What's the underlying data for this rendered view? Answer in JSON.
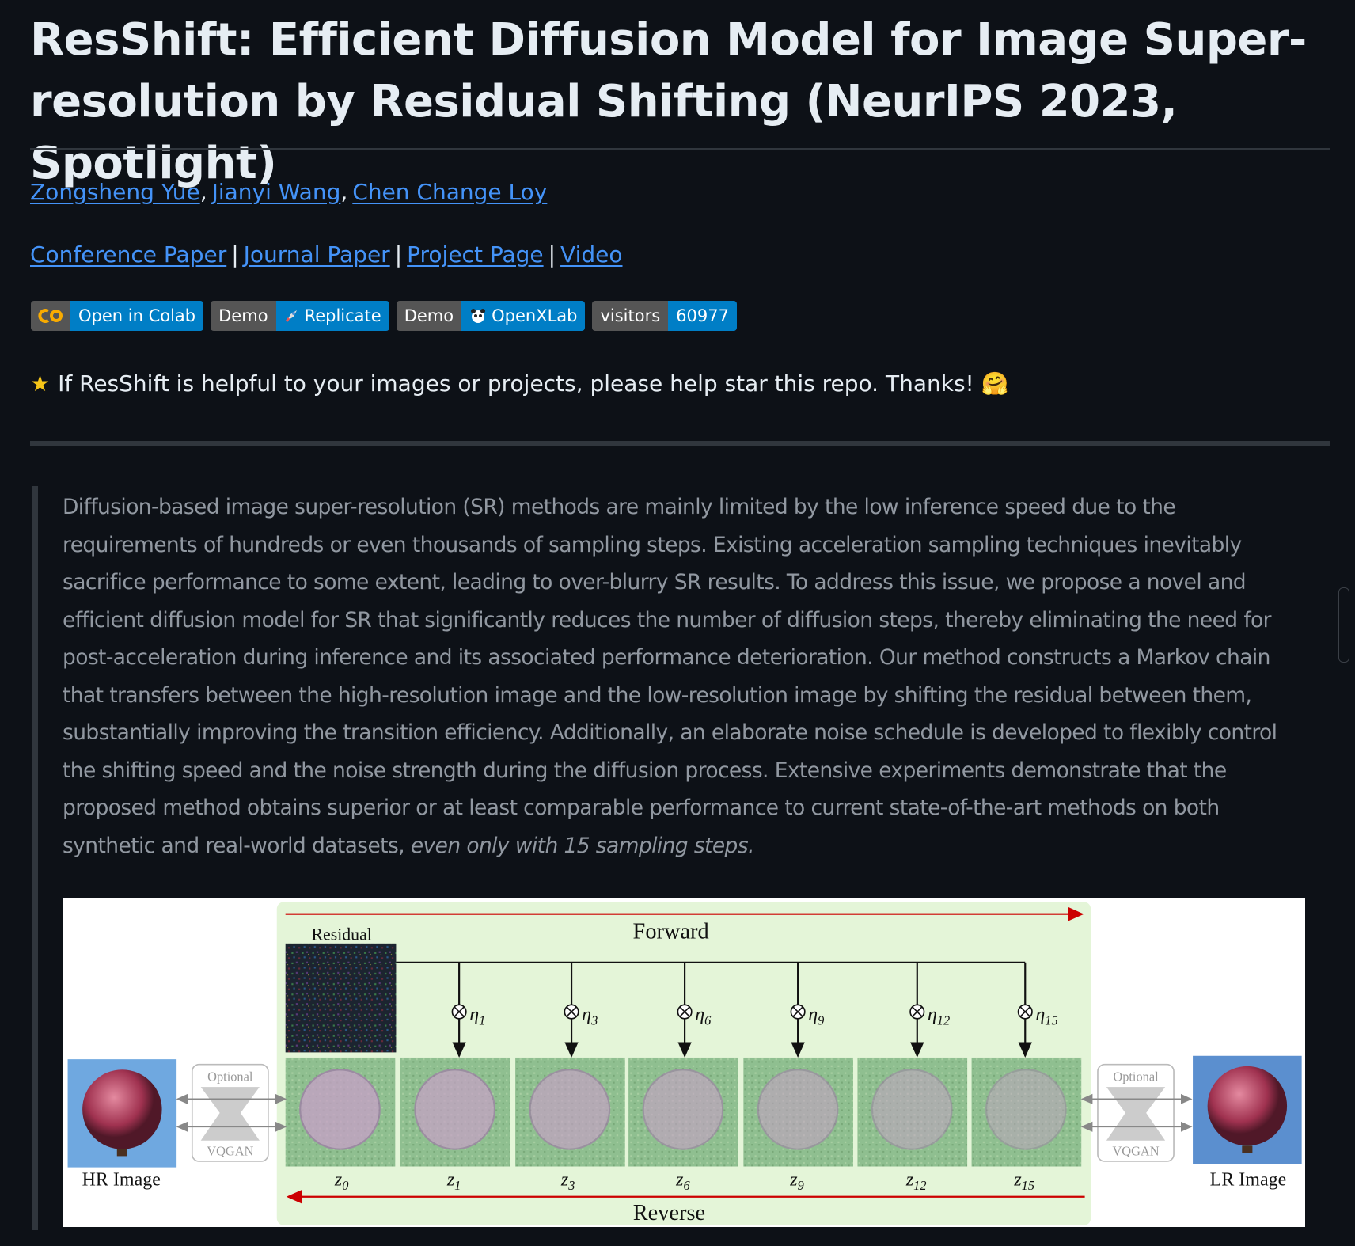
{
  "header": {
    "title": "ResShift: Efficient Diffusion Model for Image Super-resolution by Residual Shifting (NeurIPS 2023, Spotlight)"
  },
  "authors": [
    "Zongsheng Yue",
    "Jianyi Wang",
    "Chen Change Loy"
  ],
  "author_separator": ",",
  "links": [
    "Conference Paper",
    "Journal Paper",
    "Project Page",
    "Video"
  ],
  "link_separator": "|",
  "badges": [
    {
      "right": "Open in Colab"
    },
    {
      "left": "Demo",
      "right": "Replicate"
    },
    {
      "left": "Demo",
      "right": "OpenXLab"
    },
    {
      "left": "visitors",
      "right": "60977"
    }
  ],
  "star_note": {
    "icon": "★",
    "text": "If ResShift is helpful to your images or projects, please help star this repo. Thanks!",
    "emoji": "🤗"
  },
  "abstract": {
    "text": "Diffusion-based image super-resolution (SR) methods are mainly limited by the low inference speed due to the requirements of hundreds or even thousands of sampling steps. Existing acceleration sampling techniques inevitably sacrifice performance to some extent, leading to over-blurry SR results. To address this issue, we propose a novel and efficient diffusion model for SR that significantly reduces the number of diffusion steps, thereby eliminating the need for post-acceleration during inference and its associated performance deterioration. Our method constructs a Markov chain that transfers between the high-resolution image and the low-resolution image by shifting the residual between them, substantially improving the transition efficiency. Additionally, an elaborate noise schedule is developed to flexibly control the shifting speed and the noise strength during the diffusion process. Extensive experiments demonstrate that the proposed method obtains superior or at least comparable performance to current state-of-the-art methods on both synthetic and real-world datasets, ",
    "emphasis": "even only with 15 sampling steps."
  },
  "figure": {
    "forward": "Forward",
    "reverse": "Reverse",
    "residual": "Residual",
    "hr_label": "HR Image",
    "lr_label": "LR Image",
    "optional": "Optional",
    "vqgan": "VQGAN",
    "latent_symbol": "z",
    "latents": [
      "0",
      "1",
      "3",
      "6",
      "9",
      "12",
      "15"
    ],
    "eta_symbol": "η",
    "etas": [
      "1",
      "3",
      "6",
      "9",
      "12",
      "15"
    ]
  }
}
